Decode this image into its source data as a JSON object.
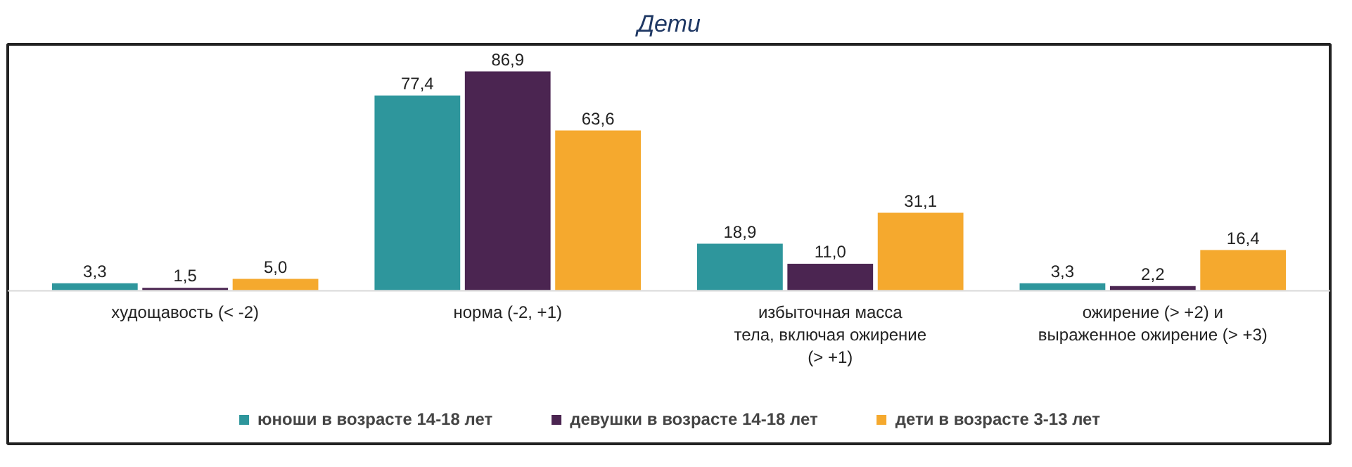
{
  "chart_data": {
    "type": "bar",
    "title": "Дети",
    "categories": [
      "худощавость (< -2)",
      "норма (-2, +1)",
      "избыточная масса\nтела, включая ожирение\n(> +1)",
      "ожирение (> +2) и\nвыраженное ожирение (> +3)"
    ],
    "series": [
      {
        "name": "юноши в возрасте 14-18 лет",
        "color": "#2e969c",
        "values": [
          3.3,
          77.4,
          18.9,
          3.3
        ],
        "value_labels": [
          "3,3",
          "77,4",
          "18,9",
          "3,3"
        ]
      },
      {
        "name": "девушки в возрасте 14-18 лет",
        "color": "#4b2551",
        "values": [
          1.5,
          86.9,
          11.0,
          2.2
        ],
        "value_labels": [
          "1,5",
          "86,9",
          "11,0",
          "2,2"
        ]
      },
      {
        "name": "дети в возрасте 3-13 лет",
        "color": "#f5a92e",
        "values": [
          5.0,
          63.6,
          31.1,
          16.4
        ],
        "value_labels": [
          "5,0",
          "63,6",
          "31,1",
          "16,4"
        ]
      }
    ],
    "legend": "bottom"
  }
}
